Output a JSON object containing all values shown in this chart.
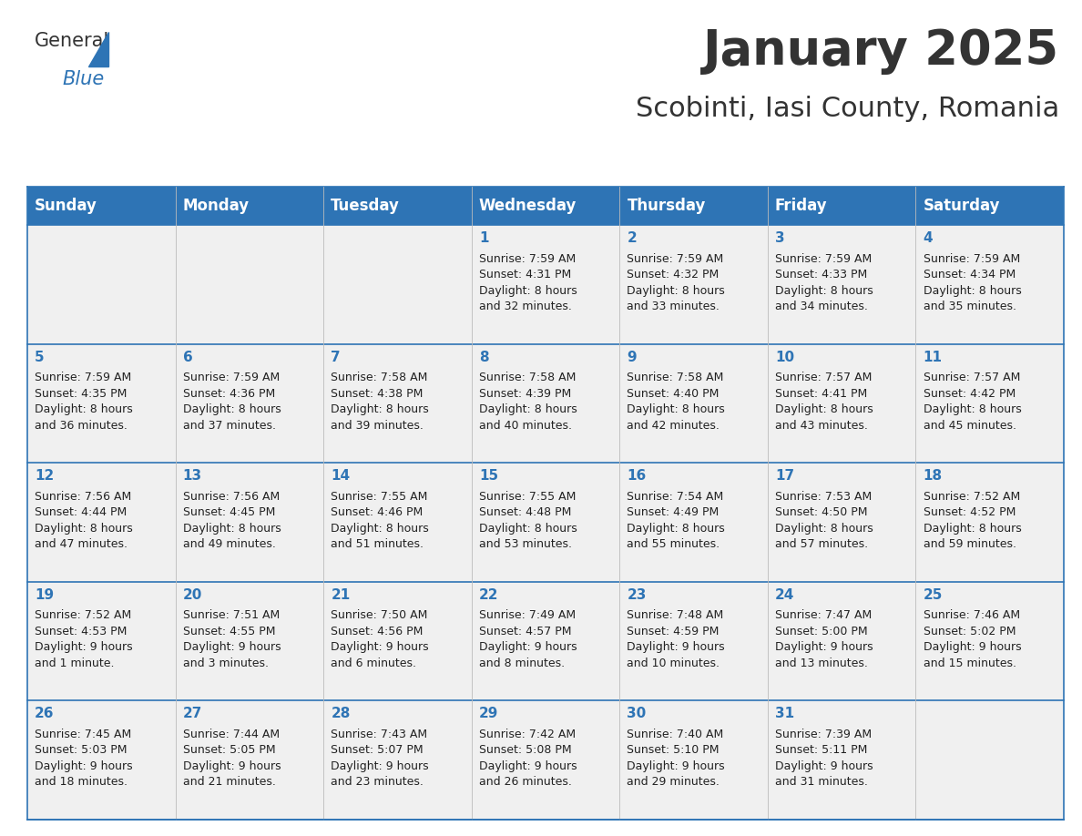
{
  "title": "January 2025",
  "subtitle": "Scobinti, Iasi County, Romania",
  "header_bg": "#2e74b5",
  "header_text_color": "#ffffff",
  "cell_bg": "#f0f0f0",
  "day_number_color": "#2e74b5",
  "text_color": "#333333",
  "cell_text_color": "#222222",
  "border_color": "#2e74b5",
  "days_of_week": [
    "Sunday",
    "Monday",
    "Tuesday",
    "Wednesday",
    "Thursday",
    "Friday",
    "Saturday"
  ],
  "weeks": [
    [
      {
        "day": "",
        "sunrise": "",
        "sunset": "",
        "daylight": ""
      },
      {
        "day": "",
        "sunrise": "",
        "sunset": "",
        "daylight": ""
      },
      {
        "day": "",
        "sunrise": "",
        "sunset": "",
        "daylight": ""
      },
      {
        "day": "1",
        "sunrise": "7:59 AM",
        "sunset": "4:31 PM",
        "daylight": "8 hours\nand 32 minutes."
      },
      {
        "day": "2",
        "sunrise": "7:59 AM",
        "sunset": "4:32 PM",
        "daylight": "8 hours\nand 33 minutes."
      },
      {
        "day": "3",
        "sunrise": "7:59 AM",
        "sunset": "4:33 PM",
        "daylight": "8 hours\nand 34 minutes."
      },
      {
        "day": "4",
        "sunrise": "7:59 AM",
        "sunset": "4:34 PM",
        "daylight": "8 hours\nand 35 minutes."
      }
    ],
    [
      {
        "day": "5",
        "sunrise": "7:59 AM",
        "sunset": "4:35 PM",
        "daylight": "8 hours\nand 36 minutes."
      },
      {
        "day": "6",
        "sunrise": "7:59 AM",
        "sunset": "4:36 PM",
        "daylight": "8 hours\nand 37 minutes."
      },
      {
        "day": "7",
        "sunrise": "7:58 AM",
        "sunset": "4:38 PM",
        "daylight": "8 hours\nand 39 minutes."
      },
      {
        "day": "8",
        "sunrise": "7:58 AM",
        "sunset": "4:39 PM",
        "daylight": "8 hours\nand 40 minutes."
      },
      {
        "day": "9",
        "sunrise": "7:58 AM",
        "sunset": "4:40 PM",
        "daylight": "8 hours\nand 42 minutes."
      },
      {
        "day": "10",
        "sunrise": "7:57 AM",
        "sunset": "4:41 PM",
        "daylight": "8 hours\nand 43 minutes."
      },
      {
        "day": "11",
        "sunrise": "7:57 AM",
        "sunset": "4:42 PM",
        "daylight": "8 hours\nand 45 minutes."
      }
    ],
    [
      {
        "day": "12",
        "sunrise": "7:56 AM",
        "sunset": "4:44 PM",
        "daylight": "8 hours\nand 47 minutes."
      },
      {
        "day": "13",
        "sunrise": "7:56 AM",
        "sunset": "4:45 PM",
        "daylight": "8 hours\nand 49 minutes."
      },
      {
        "day": "14",
        "sunrise": "7:55 AM",
        "sunset": "4:46 PM",
        "daylight": "8 hours\nand 51 minutes."
      },
      {
        "day": "15",
        "sunrise": "7:55 AM",
        "sunset": "4:48 PM",
        "daylight": "8 hours\nand 53 minutes."
      },
      {
        "day": "16",
        "sunrise": "7:54 AM",
        "sunset": "4:49 PM",
        "daylight": "8 hours\nand 55 minutes."
      },
      {
        "day": "17",
        "sunrise": "7:53 AM",
        "sunset": "4:50 PM",
        "daylight": "8 hours\nand 57 minutes."
      },
      {
        "day": "18",
        "sunrise": "7:52 AM",
        "sunset": "4:52 PM",
        "daylight": "8 hours\nand 59 minutes."
      }
    ],
    [
      {
        "day": "19",
        "sunrise": "7:52 AM",
        "sunset": "4:53 PM",
        "daylight": "9 hours\nand 1 minute."
      },
      {
        "day": "20",
        "sunrise": "7:51 AM",
        "sunset": "4:55 PM",
        "daylight": "9 hours\nand 3 minutes."
      },
      {
        "day": "21",
        "sunrise": "7:50 AM",
        "sunset": "4:56 PM",
        "daylight": "9 hours\nand 6 minutes."
      },
      {
        "day": "22",
        "sunrise": "7:49 AM",
        "sunset": "4:57 PM",
        "daylight": "9 hours\nand 8 minutes."
      },
      {
        "day": "23",
        "sunrise": "7:48 AM",
        "sunset": "4:59 PM",
        "daylight": "9 hours\nand 10 minutes."
      },
      {
        "day": "24",
        "sunrise": "7:47 AM",
        "sunset": "5:00 PM",
        "daylight": "9 hours\nand 13 minutes."
      },
      {
        "day": "25",
        "sunrise": "7:46 AM",
        "sunset": "5:02 PM",
        "daylight": "9 hours\nand 15 minutes."
      }
    ],
    [
      {
        "day": "26",
        "sunrise": "7:45 AM",
        "sunset": "5:03 PM",
        "daylight": "9 hours\nand 18 minutes."
      },
      {
        "day": "27",
        "sunrise": "7:44 AM",
        "sunset": "5:05 PM",
        "daylight": "9 hours\nand 21 minutes."
      },
      {
        "day": "28",
        "sunrise": "7:43 AM",
        "sunset": "5:07 PM",
        "daylight": "9 hours\nand 23 minutes."
      },
      {
        "day": "29",
        "sunrise": "7:42 AM",
        "sunset": "5:08 PM",
        "daylight": "9 hours\nand 26 minutes."
      },
      {
        "day": "30",
        "sunrise": "7:40 AM",
        "sunset": "5:10 PM",
        "daylight": "9 hours\nand 29 minutes."
      },
      {
        "day": "31",
        "sunrise": "7:39 AM",
        "sunset": "5:11 PM",
        "daylight": "9 hours\nand 31 minutes."
      },
      {
        "day": "",
        "sunrise": "",
        "sunset": "",
        "daylight": ""
      }
    ]
  ],
  "logo_general_color": "#333333",
  "logo_blue_color": "#2e74b5",
  "title_fontsize": 38,
  "subtitle_fontsize": 22,
  "header_fontsize": 12,
  "day_num_fontsize": 11,
  "cell_text_fontsize": 9
}
